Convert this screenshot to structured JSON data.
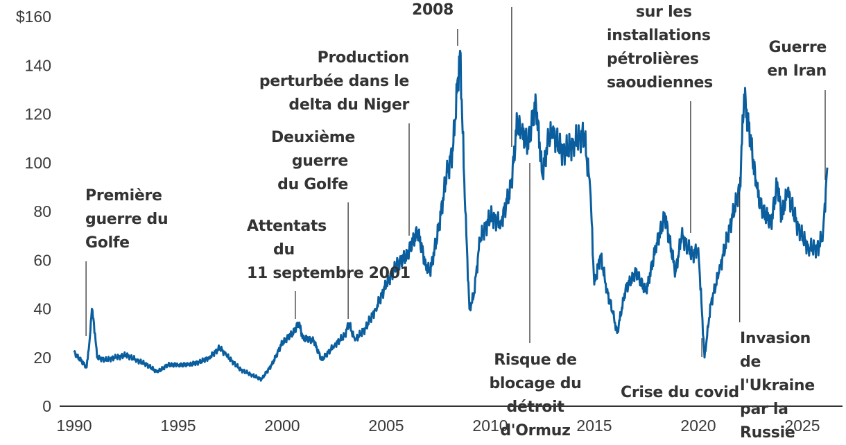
{
  "chart_data": {
    "type": "line",
    "title": "",
    "xlabel": "",
    "ylabel": "",
    "xlim": [
      1989.5,
      2027.2
    ],
    "ylim": [
      0,
      160
    ],
    "x_ticks": [
      1990,
      1995,
      2000,
      2005,
      2010,
      2015,
      2020,
      2025
    ],
    "y_ticks": [
      0,
      20,
      40,
      60,
      80,
      100,
      120,
      140,
      160
    ],
    "y_tick_labels": [
      "0",
      "20",
      "40",
      "60",
      "80",
      "100",
      "120",
      "140",
      "$160"
    ],
    "grid": false,
    "line_color": "#0a5e9e",
    "series": [
      {
        "x": [
          1990.0,
          1990.5,
          1990.6,
          1990.75,
          1990.85,
          1991.0,
          1991.1,
          1991.5,
          1992.0,
          1992.5,
          1993.0,
          1993.5,
          1994.0,
          1994.5,
          1995.0,
          1995.5,
          1996.0,
          1996.5,
          1997.0,
          1997.3,
          1998.0,
          1998.5,
          1999.0,
          1999.5,
          2000.0,
          2000.5,
          2000.8,
          2001.0,
          2001.5,
          2001.9,
          2002.5,
          2003.0,
          2003.2,
          2003.5,
          2004.0,
          2004.5,
          2005.0,
          2005.5,
          2006.0,
          2006.5,
          2006.9,
          2007.1,
          2007.5,
          2007.9,
          2008.2,
          2008.45,
          2008.55,
          2008.8,
          2009.0,
          2009.2,
          2009.5,
          2010.0,
          2010.5,
          2011.0,
          2011.3,
          2011.5,
          2011.8,
          2012.2,
          2012.5,
          2012.8,
          2013.0,
          2013.5,
          2014.0,
          2014.5,
          2014.8,
          2015.0,
          2015.3,
          2015.6,
          2015.9,
          2016.1,
          2016.5,
          2017.0,
          2017.5,
          2018.0,
          2018.4,
          2018.9,
          2019.2,
          2019.7,
          2020.0,
          2020.3,
          2020.6,
          2021.0,
          2021.5,
          2022.0,
          2022.2,
          2022.5,
          2022.8,
          2023.0,
          2023.5,
          2023.8,
          2024.0,
          2024.3,
          2024.8,
          2025.3,
          2025.8,
          2026.0,
          2026.2
        ],
        "values": [
          22,
          17,
          16,
          28,
          40,
          30,
          20,
          19,
          20,
          21,
          19,
          17,
          14,
          17,
          17,
          17,
          18,
          20,
          24,
          21,
          15,
          13,
          11,
          17,
          26,
          30,
          34,
          28,
          27,
          19,
          25,
          29,
          34,
          27,
          32,
          40,
          50,
          58,
          62,
          72,
          58,
          55,
          72,
          95,
          105,
          135,
          146,
          80,
          40,
          45,
          68,
          78,
          75,
          90,
          117,
          112,
          108,
          124,
          95,
          110,
          112,
          104,
          108,
          112,
          90,
          50,
          62,
          48,
          38,
          30,
          48,
          55,
          47,
          67,
          78,
          55,
          70,
          62,
          65,
          20,
          42,
          55,
          73,
          90,
          128,
          110,
          90,
          82,
          75,
          92,
          78,
          88,
          73,
          65,
          65,
          72,
          98
        ]
      }
    ],
    "annotations": [
      {
        "text": [
          "Première",
          "guerre du",
          "Golfe"
        ],
        "year": 1990.6
      },
      {
        "text": [
          "Attentats",
          "du",
          "11 septembre 2001"
        ],
        "year": 2000.6
      },
      {
        "text": [
          "Deuxième",
          "guerre",
          "du Golfe"
        ],
        "year": 2003.2
      },
      {
        "text": [
          "Production",
          "perturbée dans le",
          "delta du Niger"
        ],
        "year": 2006.1
      },
      {
        "text": [
          "2008"
        ],
        "year": 2008.5
      },
      {
        "text": [
          "sur les",
          "installations",
          "pétrolières",
          "saoudiennes"
        ],
        "year": 2019.6
      },
      {
        "text": [
          "Guerre",
          "en Iran"
        ],
        "year": 2026.1
      },
      {
        "text": [
          "Risque de",
          "blocage du",
          "détroit",
          "d'Ormuz"
        ],
        "year": 2011.9
      },
      {
        "text": [
          "Crise du covid"
        ],
        "year": 2020.2
      },
      {
        "text": [
          "Invasion",
          "de",
          "l'Ukraine",
          "par la",
          "Russie"
        ],
        "year": 2022.0
      }
    ]
  }
}
